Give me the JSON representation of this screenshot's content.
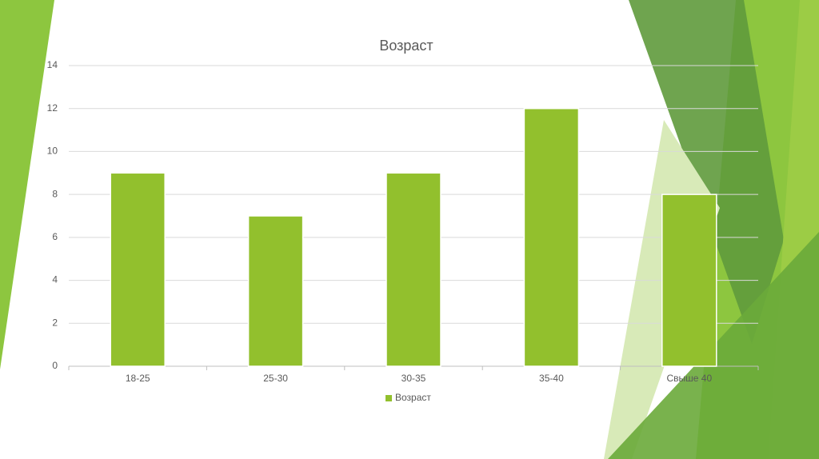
{
  "chart_data": {
    "type": "bar",
    "title": "Возраст",
    "categories": [
      "18-25",
      "25-30",
      "30-35",
      "35-40",
      "Свыше 40"
    ],
    "series": [
      {
        "name": "Возраст",
        "color": "#92c02d",
        "values": [
          9,
          7,
          9,
          12,
          8
        ]
      }
    ],
    "ylim": [
      0,
      14
    ],
    "yticks": [
      0,
      2,
      4,
      6,
      8,
      10,
      12,
      14
    ],
    "grid": true,
    "legend": "bottom"
  }
}
